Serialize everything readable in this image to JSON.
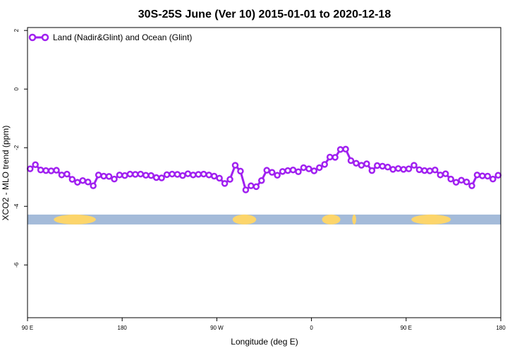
{
  "chart_data": {
    "type": "line",
    "title": "30S-25S June (Ver 10)   2015-01-01 to 2020-12-18",
    "xlabel": "Longitude (deg E)",
    "ylabel": "XCO2 - MLO trend (ppm)",
    "xlim": [
      90,
      450
    ],
    "ylim": [
      -7.8,
      2.1
    ],
    "x_ticks": [
      {
        "value": 90,
        "label": "90 E"
      },
      {
        "value": 162,
        "label": "180"
      },
      {
        "value": 234,
        "label": "90 W"
      },
      {
        "value": 306,
        "label": "0"
      },
      {
        "value": 378,
        "label": "90 E"
      },
      {
        "value": 450,
        "label": "180"
      }
    ],
    "y_ticks": [
      {
        "value": 2,
        "label": "2"
      },
      {
        "value": 0,
        "label": "0"
      },
      {
        "value": -2,
        "label": "-2"
      },
      {
        "value": -4,
        "label": "-4"
      },
      {
        "value": -6,
        "label": "-6"
      }
    ],
    "legend": {
      "position": "top-left",
      "entries": [
        "Land (Nadir&Glint) and Ocean (Glint)"
      ]
    },
    "grid": false,
    "series": [
      {
        "name": "Land (Nadir&Glint) and Ocean (Glint)",
        "color": "#a020f0",
        "x": [
          92,
          96,
          100,
          104,
          108,
          112,
          116,
          120,
          124,
          128,
          132,
          136,
          140,
          144,
          148,
          152,
          156,
          160,
          164,
          168,
          172,
          176,
          180,
          184,
          188,
          192,
          196,
          200,
          204,
          208,
          212,
          216,
          220,
          224,
          228,
          232,
          236,
          240,
          244,
          248,
          252,
          256,
          260,
          264,
          268,
          272,
          276,
          280,
          284,
          288,
          292,
          296,
          300,
          304,
          308,
          312,
          316,
          320,
          324,
          328,
          332,
          336,
          340,
          344,
          348,
          352,
          356,
          360,
          364,
          368,
          372,
          376,
          380,
          384,
          388,
          392,
          396,
          400,
          404,
          408,
          412,
          416,
          420,
          424,
          428,
          432,
          436,
          440,
          444,
          448
        ],
        "y": [
          -2.72,
          -2.58,
          -2.76,
          -2.78,
          -2.79,
          -2.77,
          -2.93,
          -2.9,
          -3.08,
          -3.18,
          -3.12,
          -3.17,
          -3.3,
          -2.93,
          -2.97,
          -2.98,
          -3.07,
          -2.93,
          -2.95,
          -2.9,
          -2.91,
          -2.9,
          -2.94,
          -2.95,
          -3.02,
          -3.03,
          -2.92,
          -2.9,
          -2.91,
          -2.95,
          -2.89,
          -2.93,
          -2.91,
          -2.9,
          -2.93,
          -2.97,
          -3.04,
          -3.22,
          -3.08,
          -2.6,
          -2.8,
          -3.44,
          -3.3,
          -3.33,
          -3.12,
          -2.77,
          -2.84,
          -2.94,
          -2.81,
          -2.78,
          -2.76,
          -2.82,
          -2.68,
          -2.72,
          -2.79,
          -2.68,
          -2.57,
          -2.32,
          -2.33,
          -2.06,
          -2.05,
          -2.44,
          -2.53,
          -2.6,
          -2.55,
          -2.78,
          -2.61,
          -2.63,
          -2.66,
          -2.74,
          -2.71,
          -2.74,
          -2.72,
          -2.6,
          -2.75,
          -2.78,
          -2.79,
          -2.76,
          -2.93,
          -2.89,
          -3.07,
          -3.18,
          -3.11,
          -3.17,
          -3.3,
          -2.93,
          -2.96,
          -2.97,
          -3.07,
          -2.94
        ]
      }
    ],
    "surface_band": {
      "y": -4.45,
      "ocean_color": "#a4bbd9",
      "land_color": "#fcd56b",
      "land_segments": [
        [
          110,
          142
        ],
        [
          246,
          264
        ],
        [
          314,
          328
        ],
        [
          337,
          340
        ],
        [
          382,
          412
        ]
      ]
    }
  }
}
